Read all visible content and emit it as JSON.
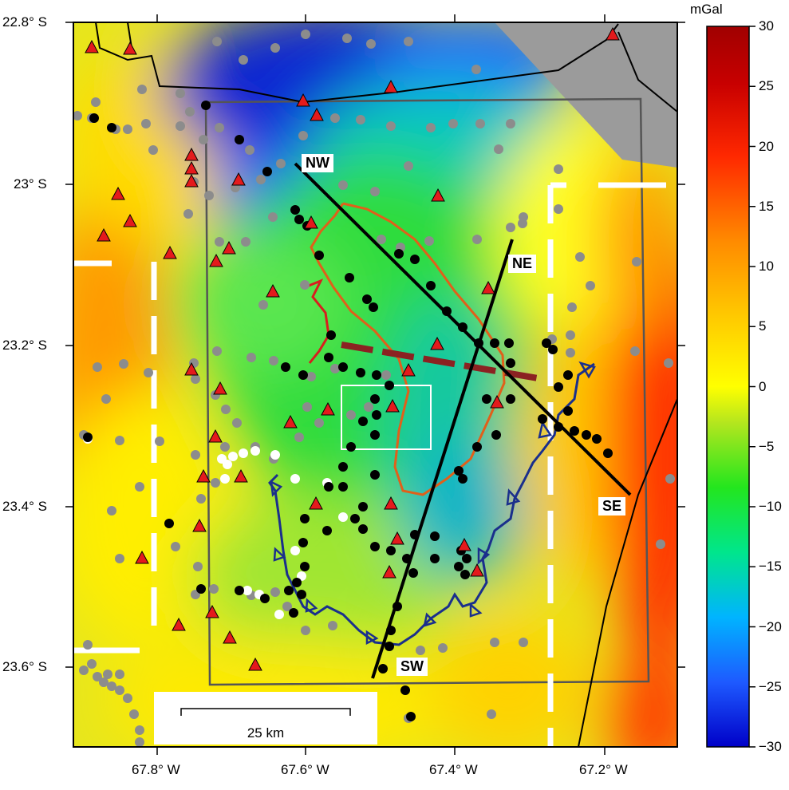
{
  "map": {
    "lat_labels": [
      "22.8° S",
      "23° S",
      "23.2° S",
      "23.4° S",
      "23.6° S"
    ],
    "lon_labels": [
      "67.8° W",
      "67.6° W",
      "67.4° W",
      "67.2° W"
    ],
    "profile_labels": {
      "nw": "NW",
      "ne": "NE",
      "se": "SE",
      "sw": "SW"
    },
    "scale_bar_label": "25 km",
    "colors": {
      "volcano": "#e41a1c",
      "station_black": "#000000",
      "station_gray": "#8c8c8c",
      "station_white": "#ffffff",
      "orange_outline": "#e0601a",
      "blue_outline": "#1a2f8c",
      "red_outline": "#d81e1e",
      "dashed_fault": "#8b2222",
      "frame": "#555555"
    }
  },
  "colorbar": {
    "unit": "mGal",
    "ticks": [
      "30",
      "25",
      "20",
      "15",
      "10",
      "5",
      "0",
      "−5",
      "−10",
      "−15",
      "−20",
      "−25",
      "−30"
    ],
    "range": [
      -30,
      30
    ],
    "colors": [
      "#0000c8",
      "#1e5aff",
      "#00b4ff",
      "#00e68c",
      "#23e61e",
      "#b4e61e",
      "#ffff00",
      "#ffc800",
      "#ff8c00",
      "#ff2800",
      "#c80000",
      "#a00000"
    ]
  }
}
